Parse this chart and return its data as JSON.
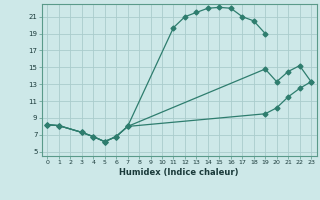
{
  "title": "",
  "xlabel": "Humidex (Indice chaleur)",
  "bg_color": "#cde8e8",
  "grid_color": "#aacccc",
  "line_color": "#2e7d6e",
  "xlim": [
    -0.5,
    23.5
  ],
  "ylim": [
    4.5,
    22.5
  ],
  "xticks": [
    0,
    1,
    2,
    3,
    4,
    5,
    6,
    7,
    8,
    9,
    10,
    11,
    12,
    13,
    14,
    15,
    16,
    17,
    18,
    19,
    20,
    21,
    22,
    23
  ],
  "yticks": [
    5,
    7,
    9,
    11,
    13,
    15,
    17,
    19,
    21
  ],
  "curve1_x": [
    0,
    1,
    3,
    4,
    5,
    6,
    7,
    11,
    12,
    13,
    14,
    15,
    16,
    17,
    18,
    19
  ],
  "curve1_y": [
    8.2,
    8.1,
    7.3,
    6.8,
    6.2,
    6.8,
    8.0,
    19.7,
    21.0,
    21.5,
    22.0,
    22.1,
    22.0,
    21.0,
    20.5,
    19.0
  ],
  "curve2_x": [
    0,
    1,
    3,
    4,
    5,
    6,
    7,
    19,
    20,
    21,
    22,
    23
  ],
  "curve2_y": [
    8.2,
    8.1,
    7.3,
    6.8,
    6.2,
    6.8,
    8.0,
    14.8,
    13.3,
    14.5,
    15.2,
    13.3
  ],
  "curve3_x": [
    0,
    1,
    3,
    4,
    5,
    6,
    7,
    19,
    20,
    21,
    22,
    23
  ],
  "curve3_y": [
    8.2,
    8.1,
    7.3,
    6.8,
    6.2,
    6.8,
    8.0,
    9.5,
    10.2,
    11.5,
    12.5,
    13.3
  ]
}
